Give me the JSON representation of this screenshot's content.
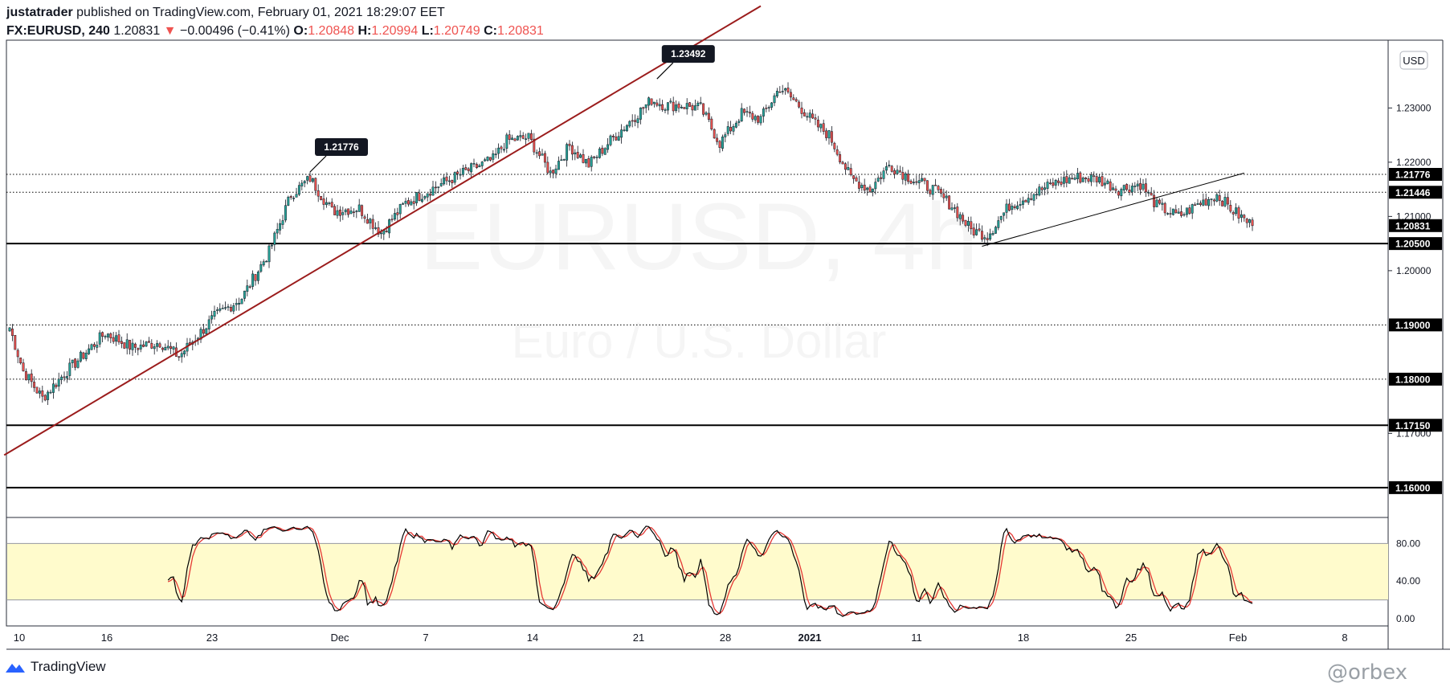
{
  "header": {
    "user": "justatrader",
    "published": "published on TradingView.com, February 01, 2021 18:29:07 EET",
    "symbol": "FX:EURUSD, 240",
    "last": "1.20831",
    "change": "−0.00496 (−0.41%)",
    "o_label": "O:",
    "o": "1.20848",
    "h_label": "H:",
    "h": "1.20994",
    "l_label": "L:",
    "l": "1.20749",
    "c_label": "C:",
    "c": "1.20831"
  },
  "currency_badge": "USD",
  "watermark": {
    "symbol": "EURUSD, 4h",
    "name": "Euro / U.S. Dollar"
  },
  "footer": {
    "brand": "TradingView",
    "credit": "@orbex"
  },
  "colors": {
    "up": "#26a69a",
    "down": "#ef5350",
    "trend": "#9b1c1c",
    "stoch_k": "#000000",
    "stoch_d": "#e53935",
    "band": "#fffbcc"
  },
  "chart_data": {
    "type": "candlestick",
    "timeframe": "240",
    "ylim": [
      1.1545,
      1.2425
    ],
    "y_ticks": [
      "1.23000",
      "1.22000",
      "1.21000",
      "1.20000",
      "1.17000"
    ],
    "x_ticks": [
      {
        "label": "10",
        "bold": false
      },
      {
        "label": "16",
        "bold": false
      },
      {
        "label": "23",
        "bold": false
      },
      {
        "label": "Dec",
        "bold": false
      },
      {
        "label": "7",
        "bold": false
      },
      {
        "label": "14",
        "bold": false
      },
      {
        "label": "21",
        "bold": false
      },
      {
        "label": "28",
        "bold": false
      },
      {
        "label": "2021",
        "bold": true
      },
      {
        "label": "11",
        "bold": false
      },
      {
        "label": "18",
        "bold": false
      },
      {
        "label": "25",
        "bold": false
      },
      {
        "label": "Feb",
        "bold": false
      },
      {
        "label": "8",
        "bold": false
      }
    ],
    "horizontal_levels": [
      {
        "value": 1.21776,
        "label": "1.21776",
        "style": "dotted"
      },
      {
        "value": 1.21446,
        "label": "1.21446",
        "style": "dotted"
      },
      {
        "value": 1.20831,
        "label": "1.20831",
        "style": "price"
      },
      {
        "value": 1.205,
        "label": "1.20500",
        "style": "solid"
      },
      {
        "value": 1.19,
        "label": "1.19000",
        "style": "dotted"
      },
      {
        "value": 1.18,
        "label": "1.18000",
        "style": "dotted"
      },
      {
        "value": 1.1715,
        "label": "1.17150",
        "style": "solid"
      },
      {
        "value": 1.16,
        "label": "1.16000",
        "style": "solid"
      }
    ],
    "callouts": [
      {
        "label": "1.21776",
        "price": 1.21776,
        "bar": 110
      },
      {
        "label": "1.23492",
        "price": 1.23492,
        "bar": 237
      }
    ],
    "anchors": [
      [
        0,
        1.1895
      ],
      [
        5,
        1.1815
      ],
      [
        12,
        1.1765
      ],
      [
        20,
        1.181
      ],
      [
        35,
        1.1885
      ],
      [
        45,
        1.1858
      ],
      [
        55,
        1.1868
      ],
      [
        62,
        1.1842
      ],
      [
        75,
        1.1915
      ],
      [
        85,
        1.195
      ],
      [
        95,
        1.2035
      ],
      [
        103,
        1.214
      ],
      [
        110,
        1.217
      ],
      [
        118,
        1.211
      ],
      [
        128,
        1.2115
      ],
      [
        136,
        1.207
      ],
      [
        145,
        1.2125
      ],
      [
        158,
        1.216
      ],
      [
        168,
        1.2185
      ],
      [
        177,
        1.2205
      ],
      [
        182,
        1.224
      ],
      [
        190,
        1.2245
      ],
      [
        198,
        1.218
      ],
      [
        205,
        1.223
      ],
      [
        212,
        1.2195
      ],
      [
        220,
        1.224
      ],
      [
        228,
        1.228
      ],
      [
        235,
        1.2315
      ],
      [
        240,
        1.2305
      ],
      [
        246,
        1.2305
      ],
      [
        253,
        1.23
      ],
      [
        260,
        1.2235
      ],
      [
        268,
        1.229
      ],
      [
        275,
        1.228
      ],
      [
        282,
        1.2338
      ],
      [
        288,
        1.231
      ],
      [
        295,
        1.227
      ],
      [
        300,
        1.225
      ],
      [
        308,
        1.217
      ],
      [
        315,
        1.215
      ],
      [
        322,
        1.2195
      ],
      [
        330,
        1.217
      ],
      [
        338,
        1.215
      ],
      [
        345,
        1.212
      ],
      [
        352,
        1.2075
      ],
      [
        358,
        1.2065
      ],
      [
        366,
        1.212
      ],
      [
        374,
        1.214
      ],
      [
        382,
        1.216
      ],
      [
        390,
        1.2172
      ],
      [
        398,
        1.217
      ],
      [
        406,
        1.215
      ],
      [
        414,
        1.216
      ],
      [
        420,
        1.212
      ],
      [
        428,
        1.21
      ],
      [
        436,
        1.2125
      ],
      [
        442,
        1.214
      ],
      [
        448,
        1.211
      ],
      [
        455,
        1.2083
      ]
    ],
    "trendlines": [
      {
        "name": "rising-support",
        "from": [
          -2,
          1.166
        ],
        "to": [
          275,
          1.2488
        ]
      },
      {
        "name": "minor-trend",
        "from": [
          356,
          1.2045
        ],
        "to": [
          452,
          1.218
        ]
      }
    ],
    "indicator": {
      "type": "stochastic",
      "levels": [
        80,
        20
      ],
      "ticks": [
        "80.00",
        "40.00",
        "0.00"
      ],
      "ylim": [
        0,
        100
      ]
    }
  }
}
